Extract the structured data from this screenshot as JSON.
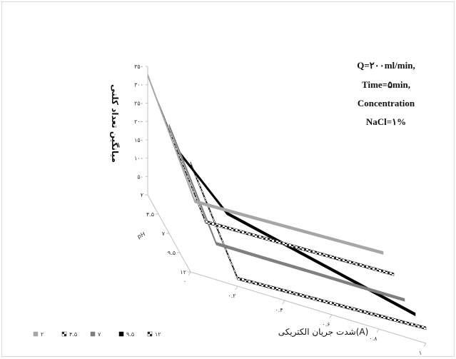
{
  "chart_data": {
    "type": "line",
    "title": "",
    "ylabel": "میانگین تعداد کلنی",
    "xlabel": "شدت جریان الکتریکی(A)",
    "zlabel": "pH",
    "y_ticks": [
      "۰",
      "۵۰",
      "۱۰۰",
      "۱۵۰",
      "۲۰۰",
      "۲۵۰",
      "۳۰۰",
      "۳۵۰"
    ],
    "x_ticks": [
      "۰",
      "۰.۲",
      "۰.۴",
      "۰.۶",
      "۰.۸",
      "۱"
    ],
    "z_ticks": [
      "۲",
      "۴.۵",
      "۷",
      "۹.۵",
      "۱۲"
    ],
    "ylim": [
      0,
      350
    ],
    "x": [
      0,
      0.2,
      0.4,
      0.6,
      0.8,
      1
    ],
    "annotation": [
      "Q=۲۰۰ml/min,",
      "Time=۵min,",
      "Concentration",
      "NaCl=۱%"
    ],
    "series": [
      {
        "name": "۲",
        "depth": 0,
        "color": "#a6a6a6",
        "pattern": "solid",
        "values": [
          330,
          25,
          28,
          32,
          36,
          40
        ]
      },
      {
        "name": "۴.۵",
        "depth": 1,
        "color": "#444444",
        "pattern": "checker",
        "values": [
          305,
          22,
          25,
          28,
          31,
          34
        ]
      },
      {
        "name": "۷",
        "depth": 2,
        "color": "#7f7f7f",
        "pattern": "solid",
        "values": [
          298,
          15,
          15,
          16,
          16,
          17
        ]
      },
      {
        "name": "۹.۵",
        "depth": 3,
        "color": "#000000",
        "pattern": "solid",
        "values": [
          275,
          150,
          120,
          90,
          60,
          30
        ]
      },
      {
        "name": "۱۲",
        "depth": 4,
        "color": "#333333",
        "pattern": "checker",
        "values": [
          300,
          25,
          30,
          35,
          40,
          45
        ]
      }
    ],
    "legend_position": "bottom-left"
  }
}
